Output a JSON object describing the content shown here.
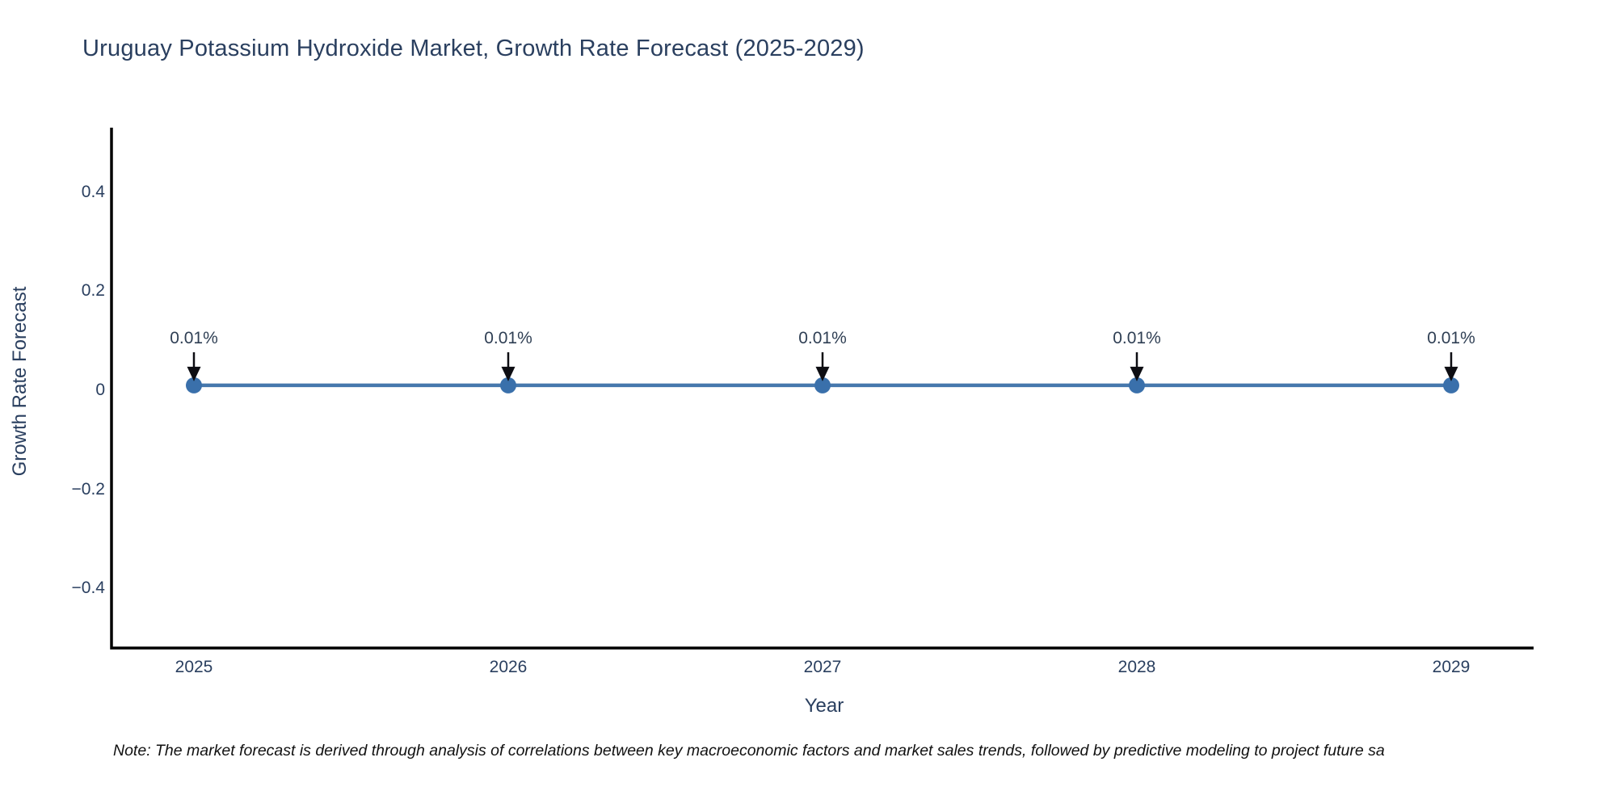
{
  "title": "Uruguay Potassium Hydroxide Market, Growth Rate Forecast (2025-2029)",
  "note": "Note: The market forecast is derived through analysis of correlations between key macroeconomic factors and market sales trends, followed by predictive modeling to project future sa",
  "colors": {
    "background": "#ffffff",
    "title_text": "#2a3f5f",
    "tick_text": "#2a3f5f",
    "axis_line": "#000000",
    "line": "#4678ad",
    "marker": "#3a70ab",
    "annotation_arrow": "#0d0d12",
    "annotation_text": "#2f3f54",
    "note_text": "#111111"
  },
  "chart_data": {
    "type": "line",
    "title": "Uruguay Potassium Hydroxide Market, Growth Rate Forecast (2025-2029)",
    "x": [
      2025,
      2026,
      2027,
      2028,
      2029
    ],
    "xtick_labels": [
      "2025",
      "2026",
      "2027",
      "2028",
      "2029"
    ],
    "xlabel": "Year",
    "ylabel": "Growth Rate Forecast",
    "series": [
      {
        "name": "Growth Rate Forecast",
        "values": [
          0.01,
          0.01,
          0.01,
          0.01,
          0.01
        ]
      }
    ],
    "point_labels": [
      "0.01%",
      "0.01%",
      "0.01%",
      "0.01%",
      "0.01%"
    ],
    "yticks": [
      0.4,
      0.2,
      0,
      -0.2,
      -0.4
    ],
    "ytick_labels": [
      "0.4",
      "0.2",
      "0",
      "−0.2",
      "−0.4"
    ],
    "ylim": [
      -0.52,
      0.53
    ],
    "grid": false,
    "legend": false,
    "annotation_style": "value label above each point with downward black arrow"
  }
}
